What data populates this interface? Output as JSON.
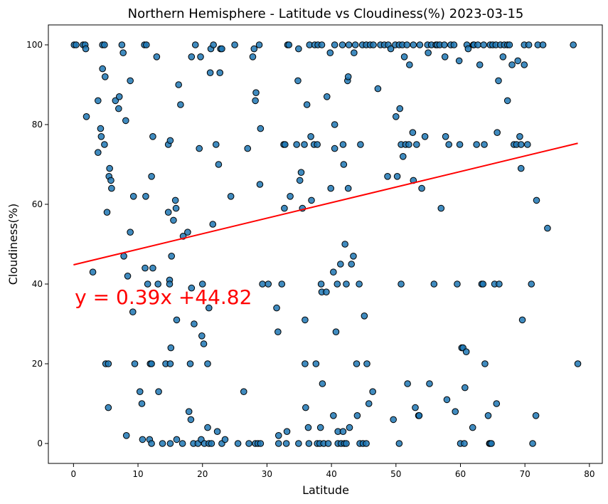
{
  "chart_data": {
    "type": "scatter",
    "title": "Northern Hemisphere - Latitude vs Cloudiness(%) 2023-03-15",
    "xlabel": "Latitude",
    "ylabel": "Cloudiness(%)",
    "xlim": [
      -3.9,
      82.0
    ],
    "ylim": [
      -5,
      105
    ],
    "xticks": [
      0,
      10,
      20,
      30,
      40,
      50,
      60,
      70,
      80
    ],
    "yticks": [
      0,
      20,
      40,
      60,
      80,
      100
    ],
    "grid": false,
    "point_color": "#1f77b4",
    "line_color": "#ff0000",
    "regression": {
      "slope": 0.39,
      "intercept": 44.82,
      "x_range": [
        0.0,
        78.2
      ],
      "equation": "y = 0.39x +44.82",
      "label_x": 0.2,
      "label_y": 35
    },
    "points": [
      [
        0.1,
        100
      ],
      [
        0.4,
        100
      ],
      [
        1.5,
        100
      ],
      [
        1.8,
        100
      ],
      [
        1.9,
        99
      ],
      [
        2.0,
        82
      ],
      [
        3.0,
        43
      ],
      [
        3.8,
        86
      ],
      [
        3.8,
        73
      ],
      [
        4.2,
        79
      ],
      [
        4.3,
        77
      ],
      [
        4.5,
        100
      ],
      [
        4.5,
        94
      ],
      [
        4.8,
        100
      ],
      [
        4.9,
        92
      ],
      [
        4.8,
        75
      ],
      [
        5.0,
        20
      ],
      [
        5.2,
        58
      ],
      [
        5.4,
        9
      ],
      [
        5.4,
        20
      ],
      [
        5.5,
        67
      ],
      [
        5.6,
        69
      ],
      [
        5.8,
        66
      ],
      [
        5.9,
        64
      ],
      [
        6.5,
        86
      ],
      [
        7.0,
        84
      ],
      [
        7.1,
        87
      ],
      [
        7.5,
        100
      ],
      [
        7.7,
        98
      ],
      [
        7.8,
        47
      ],
      [
        8.1,
        81
      ],
      [
        8.2,
        2
      ],
      [
        8.4,
        42
      ],
      [
        8.8,
        91
      ],
      [
        8.8,
        53
      ],
      [
        9.2,
        33
      ],
      [
        9.3,
        62
      ],
      [
        9.5,
        20
      ],
      [
        10.3,
        13
      ],
      [
        10.6,
        10
      ],
      [
        10.7,
        1
      ],
      [
        11.0,
        100
      ],
      [
        11.2,
        62
      ],
      [
        11.1,
        44
      ],
      [
        11.3,
        100
      ],
      [
        11.5,
        40
      ],
      [
        11.8,
        1
      ],
      [
        11.9,
        20
      ],
      [
        12.1,
        67
      ],
      [
        12.1,
        20
      ],
      [
        12.3,
        77
      ],
      [
        12.3,
        44
      ],
      [
        12.1,
        0
      ],
      [
        12.9,
        97
      ],
      [
        13.1,
        40
      ],
      [
        13.2,
        13
      ],
      [
        13.8,
        0
      ],
      [
        14.3,
        20
      ],
      [
        14.7,
        75
      ],
      [
        14.7,
        58
      ],
      [
        14.9,
        41
      ],
      [
        14.9,
        40
      ],
      [
        15.0,
        76
      ],
      [
        15.0,
        20
      ],
      [
        15.0,
        0
      ],
      [
        15.2,
        47
      ],
      [
        15.1,
        24
      ],
      [
        15.5,
        56
      ],
      [
        15.8,
        61
      ],
      [
        15.9,
        59
      ],
      [
        16.0,
        31
      ],
      [
        16.0,
        1
      ],
      [
        16.3,
        90
      ],
      [
        16.6,
        85
      ],
      [
        16.9,
        0
      ],
      [
        17.0,
        52
      ],
      [
        17.7,
        53
      ],
      [
        17.9,
        8
      ],
      [
        18.1,
        20
      ],
      [
        18.2,
        6
      ],
      [
        18.3,
        97
      ],
      [
        18.3,
        39
      ],
      [
        18.6,
        0
      ],
      [
        18.7,
        30
      ],
      [
        18.9,
        100
      ],
      [
        19.3,
        0
      ],
      [
        19.5,
        74
      ],
      [
        19.7,
        97
      ],
      [
        19.8,
        1
      ],
      [
        19.9,
        27
      ],
      [
        20.0,
        40
      ],
      [
        20.2,
        25
      ],
      [
        20.3,
        0
      ],
      [
        20.8,
        20
      ],
      [
        20.8,
        4
      ],
      [
        21.0,
        0
      ],
      [
        21.0,
        34
      ],
      [
        21.2,
        93
      ],
      [
        21.3,
        99
      ],
      [
        21.4,
        0
      ],
      [
        21.6,
        55
      ],
      [
        21.7,
        100
      ],
      [
        22.1,
        75
      ],
      [
        22.3,
        3
      ],
      [
        22.5,
        70
      ],
      [
        22.7,
        93
      ],
      [
        22.8,
        99
      ],
      [
        23.0,
        99
      ],
      [
        23.0,
        0
      ],
      [
        23.5,
        1
      ],
      [
        24.4,
        62
      ],
      [
        25.0,
        100
      ],
      [
        25.5,
        0
      ],
      [
        26.4,
        13
      ],
      [
        27.0,
        74
      ],
      [
        27.2,
        0
      ],
      [
        27.8,
        97
      ],
      [
        28.0,
        99
      ],
      [
        28.2,
        0
      ],
      [
        28.3,
        88
      ],
      [
        28.2,
        86
      ],
      [
        28.6,
        0
      ],
      [
        28.8,
        100
      ],
      [
        28.9,
        65
      ],
      [
        29.0,
        79
      ],
      [
        29.0,
        0
      ],
      [
        29.3,
        40
      ],
      [
        30.2,
        40
      ],
      [
        31.5,
        34
      ],
      [
        31.7,
        28
      ],
      [
        31.8,
        0
      ],
      [
        31.8,
        2
      ],
      [
        32.3,
        40
      ],
      [
        32.6,
        75
      ],
      [
        32.7,
        59
      ],
      [
        32.8,
        75
      ],
      [
        33.0,
        0
      ],
      [
        33.1,
        3
      ],
      [
        33.2,
        100
      ],
      [
        33.4,
        100
      ],
      [
        33.6,
        62
      ],
      [
        34.6,
        75
      ],
      [
        34.8,
        91
      ],
      [
        34.9,
        99
      ],
      [
        34.9,
        0
      ],
      [
        35.1,
        66
      ],
      [
        35.3,
        68
      ],
      [
        35.5,
        59
      ],
      [
        35.8,
        75
      ],
      [
        35.9,
        20
      ],
      [
        35.9,
        31
      ],
      [
        36.0,
        9
      ],
      [
        36.2,
        85
      ],
      [
        36.4,
        4
      ],
      [
        36.5,
        0
      ],
      [
        36.6,
        100
      ],
      [
        36.8,
        77
      ],
      [
        36.9,
        61
      ],
      [
        37.3,
        75
      ],
      [
        37.4,
        100
      ],
      [
        37.6,
        20
      ],
      [
        37.8,
        75
      ],
      [
        37.8,
        0
      ],
      [
        37.9,
        100
      ],
      [
        38.2,
        0
      ],
      [
        38.3,
        4
      ],
      [
        38.4,
        40
      ],
      [
        38.5,
        38
      ],
      [
        38.5,
        100
      ],
      [
        38.6,
        15
      ],
      [
        38.8,
        0
      ],
      [
        39.2,
        38
      ],
      [
        39.3,
        87
      ],
      [
        39.5,
        0
      ],
      [
        39.8,
        98
      ],
      [
        39.9,
        64
      ],
      [
        40.3,
        43
      ],
      [
        40.3,
        7
      ],
      [
        40.5,
        100
      ],
      [
        40.5,
        80
      ],
      [
        40.5,
        74
      ],
      [
        40.7,
        28
      ],
      [
        40.9,
        40
      ],
      [
        41.0,
        3
      ],
      [
        41.0,
        0
      ],
      [
        41.5,
        0
      ],
      [
        41.4,
        45
      ],
      [
        41.7,
        100
      ],
      [
        41.8,
        75
      ],
      [
        41.9,
        70
      ],
      [
        41.8,
        3
      ],
      [
        42.0,
        0
      ],
      [
        42.1,
        50
      ],
      [
        42.3,
        40
      ],
      [
        42.3,
        0
      ],
      [
        42.5,
        91
      ],
      [
        42.6,
        92
      ],
      [
        42.7,
        100
      ],
      [
        42.6,
        64
      ],
      [
        42.8,
        4
      ],
      [
        43.1,
        45
      ],
      [
        43.4,
        47
      ],
      [
        43.5,
        98
      ],
      [
        43.7,
        100
      ],
      [
        43.9,
        20
      ],
      [
        44.0,
        7
      ],
      [
        44.3,
        40
      ],
      [
        44.4,
        0
      ],
      [
        44.5,
        75
      ],
      [
        44.8,
        100
      ],
      [
        44.9,
        0
      ],
      [
        45.1,
        32
      ],
      [
        45.4,
        100
      ],
      [
        45.4,
        0
      ],
      [
        45.5,
        20
      ],
      [
        45.8,
        10
      ],
      [
        46.0,
        100
      ],
      [
        46.4,
        13
      ],
      [
        46.5,
        100
      ],
      [
        47.2,
        89
      ],
      [
        47.6,
        100
      ],
      [
        48.2,
        100
      ],
      [
        48.7,
        67
      ],
      [
        48.8,
        100
      ],
      [
        49.2,
        99
      ],
      [
        49.6,
        6
      ],
      [
        49.9,
        100
      ],
      [
        50.0,
        82
      ],
      [
        50.2,
        67
      ],
      [
        50.5,
        100
      ],
      [
        50.5,
        0
      ],
      [
        50.6,
        84
      ],
      [
        50.8,
        75
      ],
      [
        50.8,
        40
      ],
      [
        51.0,
        100
      ],
      [
        51.3,
        97
      ],
      [
        51.1,
        72
      ],
      [
        51.5,
        75
      ],
      [
        51.7,
        100
      ],
      [
        51.8,
        15
      ],
      [
        52.0,
        75
      ],
      [
        52.1,
        95
      ],
      [
        52.6,
        78
      ],
      [
        52.7,
        100
      ],
      [
        52.7,
        66
      ],
      [
        53.0,
        9
      ],
      [
        53.2,
        75
      ],
      [
        53.5,
        7
      ],
      [
        53.6,
        7
      ],
      [
        53.7,
        100
      ],
      [
        54.0,
        64
      ],
      [
        54.5,
        77
      ],
      [
        54.9,
        100
      ],
      [
        55.0,
        98
      ],
      [
        55.2,
        15
      ],
      [
        55.5,
        100
      ],
      [
        55.9,
        40
      ],
      [
        56.2,
        100
      ],
      [
        56.4,
        100
      ],
      [
        56.8,
        100
      ],
      [
        57.0,
        59
      ],
      [
        57.5,
        100
      ],
      [
        57.6,
        97
      ],
      [
        57.7,
        77
      ],
      [
        57.9,
        11
      ],
      [
        58.2,
        75
      ],
      [
        58.5,
        100
      ],
      [
        59.0,
        100
      ],
      [
        59.2,
        8
      ],
      [
        59.5,
        40
      ],
      [
        59.8,
        96
      ],
      [
        59.9,
        75
      ],
      [
        60.0,
        0
      ],
      [
        60.2,
        24
      ],
      [
        60.4,
        24
      ],
      [
        60.6,
        0
      ],
      [
        60.7,
        14
      ],
      [
        60.9,
        23
      ],
      [
        61.0,
        100
      ],
      [
        61.2,
        99
      ],
      [
        61.9,
        4
      ],
      [
        62.0,
        100
      ],
      [
        62.1,
        100
      ],
      [
        62.5,
        75
      ],
      [
        62.7,
        100
      ],
      [
        63.0,
        95
      ],
      [
        63.3,
        40
      ],
      [
        63.5,
        40
      ],
      [
        63.6,
        100
      ],
      [
        63.7,
        75
      ],
      [
        63.8,
        20
      ],
      [
        64.3,
        7
      ],
      [
        64.5,
        0
      ],
      [
        64.6,
        100
      ],
      [
        64.6,
        0
      ],
      [
        64.8,
        0
      ],
      [
        65.0,
        100
      ],
      [
        65.3,
        40
      ],
      [
        65.5,
        100
      ],
      [
        65.6,
        10
      ],
      [
        65.7,
        78
      ],
      [
        65.9,
        91
      ],
      [
        66.0,
        40
      ],
      [
        66.2,
        100
      ],
      [
        66.6,
        97
      ],
      [
        66.8,
        100
      ],
      [
        67.3,
        100
      ],
      [
        67.3,
        86
      ],
      [
        67.6,
        100
      ],
      [
        68.0,
        95
      ],
      [
        68.3,
        75
      ],
      [
        68.7,
        75
      ],
      [
        68.9,
        96
      ],
      [
        69.2,
        77
      ],
      [
        69.4,
        69
      ],
      [
        69.4,
        75
      ],
      [
        69.6,
        31
      ],
      [
        69.9,
        95
      ],
      [
        69.9,
        100
      ],
      [
        70.4,
        75
      ],
      [
        70.6,
        100
      ],
      [
        71.0,
        40
      ],
      [
        71.2,
        0
      ],
      [
        71.7,
        7
      ],
      [
        71.8,
        61
      ],
      [
        72.0,
        100
      ],
      [
        72.8,
        100
      ],
      [
        73.5,
        54
      ],
      [
        77.5,
        100
      ],
      [
        78.2,
        20
      ]
    ]
  }
}
